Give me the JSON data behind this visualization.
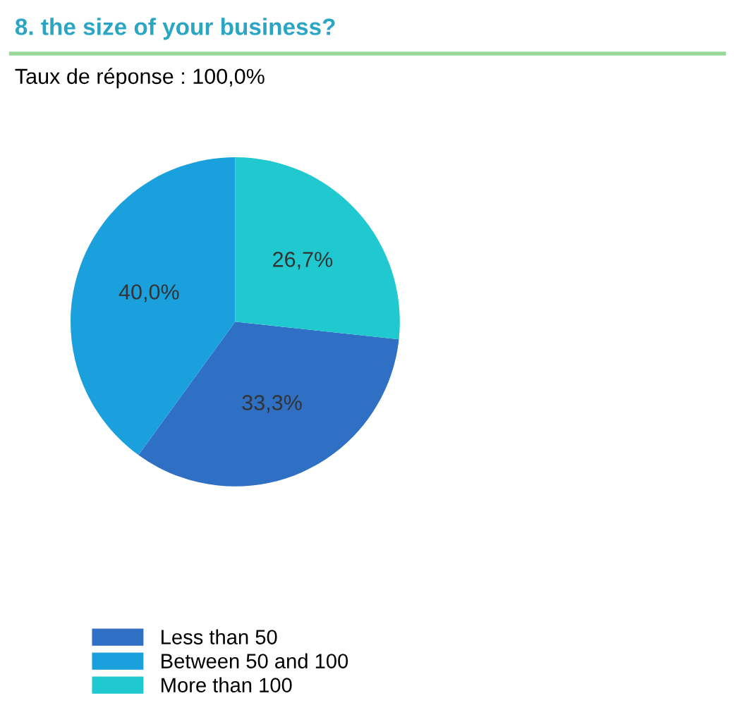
{
  "chart_data": {
    "type": "pie",
    "title": "8. the size of your business?",
    "subtitle": "Taux de réponse : 100,0%",
    "categories": [
      "Less than 50",
      "Between 50 and 100",
      "More than 100"
    ],
    "values": [
      33.3,
      40.0,
      26.7
    ],
    "colors": [
      "#2f6fc4",
      "#1aa0dc",
      "#1fc9cf"
    ],
    "value_labels": [
      "33,3%",
      "40,0%",
      "26,7%"
    ],
    "legend": "bottom left"
  }
}
